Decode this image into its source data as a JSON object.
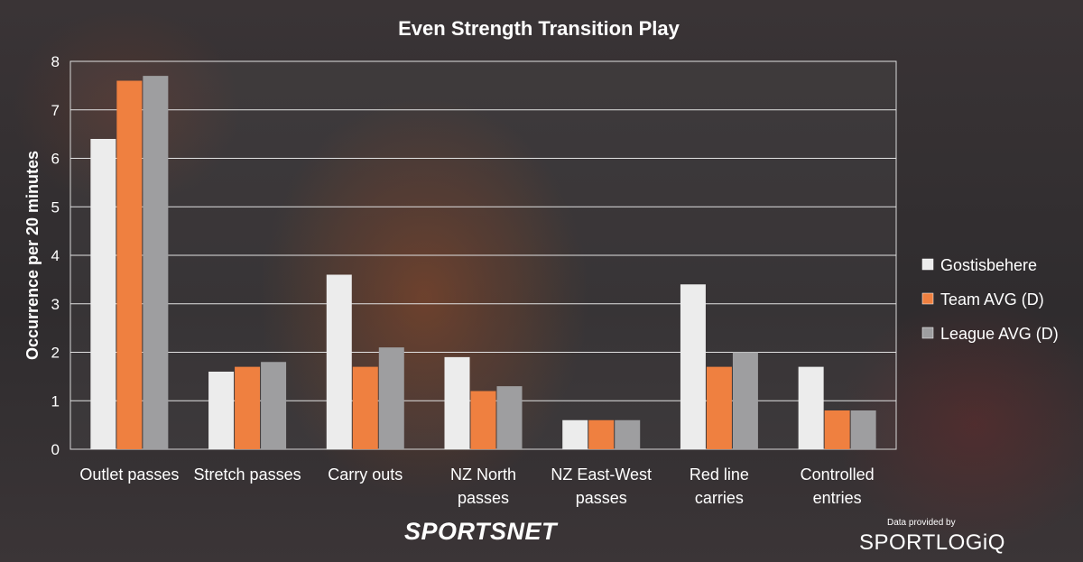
{
  "chart_data": {
    "type": "bar",
    "title": "Even Strength Transition Play",
    "ylabel": "Occurrence per 20 minutes",
    "xlabel": "",
    "ylim": [
      0,
      8
    ],
    "yticks": [
      "0",
      "1",
      "2",
      "3",
      "4",
      "5",
      "6",
      "7",
      "8"
    ],
    "grid": true,
    "legend_position": "right",
    "categories": [
      [
        "Outlet passes"
      ],
      [
        "Stretch passes"
      ],
      [
        "Carry outs"
      ],
      [
        "NZ North",
        "passes"
      ],
      [
        "NZ East-West",
        "passes"
      ],
      [
        "Red line",
        "carries"
      ],
      [
        "Controlled",
        "entries"
      ]
    ],
    "series": [
      {
        "name": "Gostisbehere",
        "color": "#ececec",
        "values": [
          6.4,
          1.6,
          3.6,
          1.9,
          0.6,
          3.4,
          1.7
        ]
      },
      {
        "name": "Team AVG (D)",
        "color": "#ef8040",
        "values": [
          7.6,
          1.7,
          1.7,
          1.2,
          0.6,
          1.7,
          0.8
        ]
      },
      {
        "name": "League AVG (D)",
        "color": "#9e9ea0",
        "values": [
          7.7,
          1.8,
          2.1,
          1.3,
          0.6,
          2.0,
          0.8
        ]
      }
    ]
  },
  "branding": {
    "broadcaster_prefix": "SPORTS",
    "broadcaster_suffix": "NET",
    "data_credit": "Data provided by",
    "data_provider": "SPORTLOGiQ"
  }
}
